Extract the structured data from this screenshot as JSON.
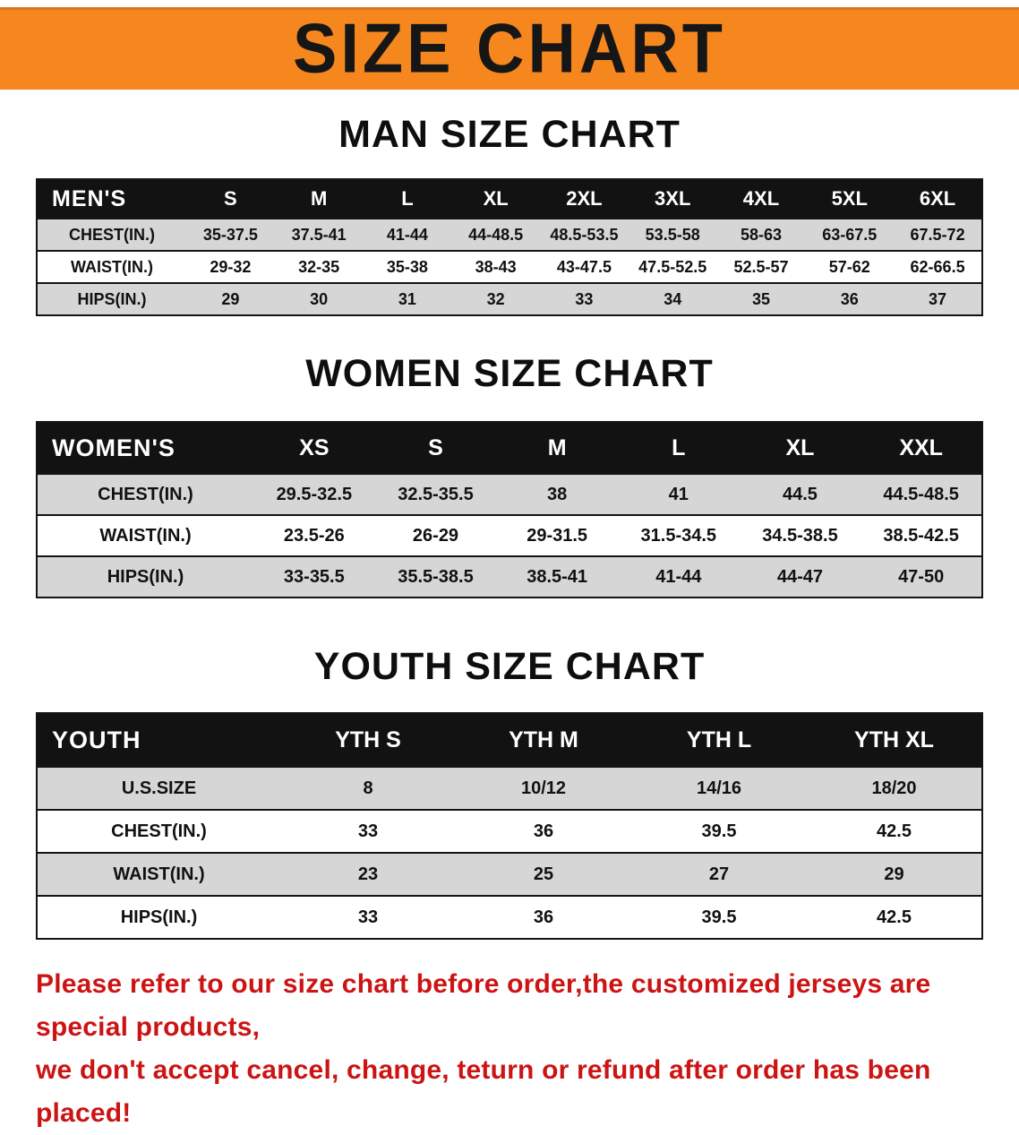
{
  "banner": {
    "title": "SIZE CHART",
    "bg_color": "#f6871f",
    "text_color": "#161616"
  },
  "sections": [
    {
      "heading": "MAN SIZE CHART",
      "table": {
        "header": [
          "MEN'S",
          "S",
          "M",
          "L",
          "XL",
          "2XL",
          "3XL",
          "4XL",
          "5XL",
          "6XL"
        ],
        "rows": [
          [
            "CHEST(IN.)",
            "35-37.5",
            "37.5-41",
            "41-44",
            "44-48.5",
            "48.5-53.5",
            "53.5-58",
            "58-63",
            "63-67.5",
            "67.5-72"
          ],
          [
            "WAIST(IN.)",
            "29-32",
            "32-35",
            "35-38",
            "38-43",
            "43-47.5",
            "47.5-52.5",
            "52.5-57",
            "57-62",
            "62-66.5"
          ],
          [
            "HIPS(IN.)",
            "29",
            "30",
            "31",
            "32",
            "33",
            "34",
            "35",
            "36",
            "37"
          ]
        ]
      }
    },
    {
      "heading": "WOMEN SIZE CHART",
      "table": {
        "header": [
          "WOMEN'S",
          "XS",
          "S",
          "M",
          "L",
          "XL",
          "XXL"
        ],
        "rows": [
          [
            "CHEST(IN.)",
            "29.5-32.5",
            "32.5-35.5",
            "38",
            "41",
            "44.5",
            "44.5-48.5"
          ],
          [
            "WAIST(IN.)",
            "23.5-26",
            "26-29",
            "29-31.5",
            "31.5-34.5",
            "34.5-38.5",
            "38.5-42.5"
          ],
          [
            "HIPS(IN.)",
            "33-35.5",
            "35.5-38.5",
            "38.5-41",
            "41-44",
            "44-47",
            "47-50"
          ]
        ]
      }
    },
    {
      "heading": "YOUTH SIZE CHART",
      "table": {
        "header": [
          "YOUTH",
          "YTH S",
          "YTH M",
          "YTH L",
          "YTH XL"
        ],
        "rows": [
          [
            "U.S.SIZE",
            "8",
            "10/12",
            "14/16",
            "18/20"
          ],
          [
            "CHEST(IN.)",
            "33",
            "36",
            "39.5",
            "42.5"
          ],
          [
            "WAIST(IN.)",
            "23",
            "25",
            "27",
            "29"
          ],
          [
            "HIPS(IN.)",
            "33",
            "36",
            "39.5",
            "42.5"
          ]
        ]
      }
    }
  ],
  "footer": {
    "line1": "Please refer to our size chart before order,the customized jerseys are special products,",
    "line2": "we don't accept cancel, change, teturn or refund after order has been placed!",
    "text_color": "#cc1414"
  }
}
